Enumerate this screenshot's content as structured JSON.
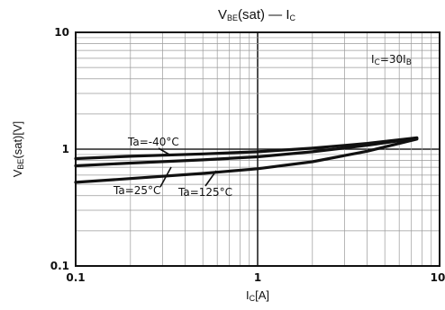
{
  "chart_data": {
    "type": "line",
    "title": {
      "main": "V",
      "main_sub": "BE",
      "rest": "(sat)  —  I",
      "rest_sub": "C"
    },
    "xlabel": {
      "main": "I",
      "sub": "C",
      "rest": "[A]"
    },
    "ylabel": {
      "main": "V",
      "sub": "BE",
      "rest": "(sat)[V]"
    },
    "x_scale": "log",
    "y_scale": "log",
    "xlim": [
      0.1,
      10
    ],
    "ylim": [
      0.1,
      10
    ],
    "x_ticks": [
      "0.1",
      "1",
      "10"
    ],
    "y_ticks": [
      "0.1",
      "1",
      "10"
    ],
    "grid": true,
    "condition": {
      "main": "I",
      "sub": "C",
      "rest": "=30I",
      "rest_sub": "B"
    },
    "series": [
      {
        "name": "Ta=-40°C",
        "x": [
          0.1,
          0.2,
          0.5,
          1,
          2,
          4,
          7.5
        ],
        "y": [
          0.83,
          0.87,
          0.91,
          0.95,
          1.02,
          1.12,
          1.25
        ]
      },
      {
        "name": "Ta=25°C",
        "x": [
          0.1,
          0.2,
          0.5,
          1,
          2,
          4,
          7.5
        ],
        "y": [
          0.72,
          0.76,
          0.81,
          0.86,
          0.95,
          1.08,
          1.24
        ]
      },
      {
        "name": "Ta=125°C",
        "x": [
          0.1,
          0.2,
          0.5,
          1,
          2,
          4,
          7.5
        ],
        "y": [
          0.52,
          0.56,
          0.62,
          0.68,
          0.78,
          0.96,
          1.22
        ]
      }
    ],
    "colors": {
      "line": "#111111",
      "grid": "#9a9a9a",
      "frame": "#111111"
    }
  }
}
